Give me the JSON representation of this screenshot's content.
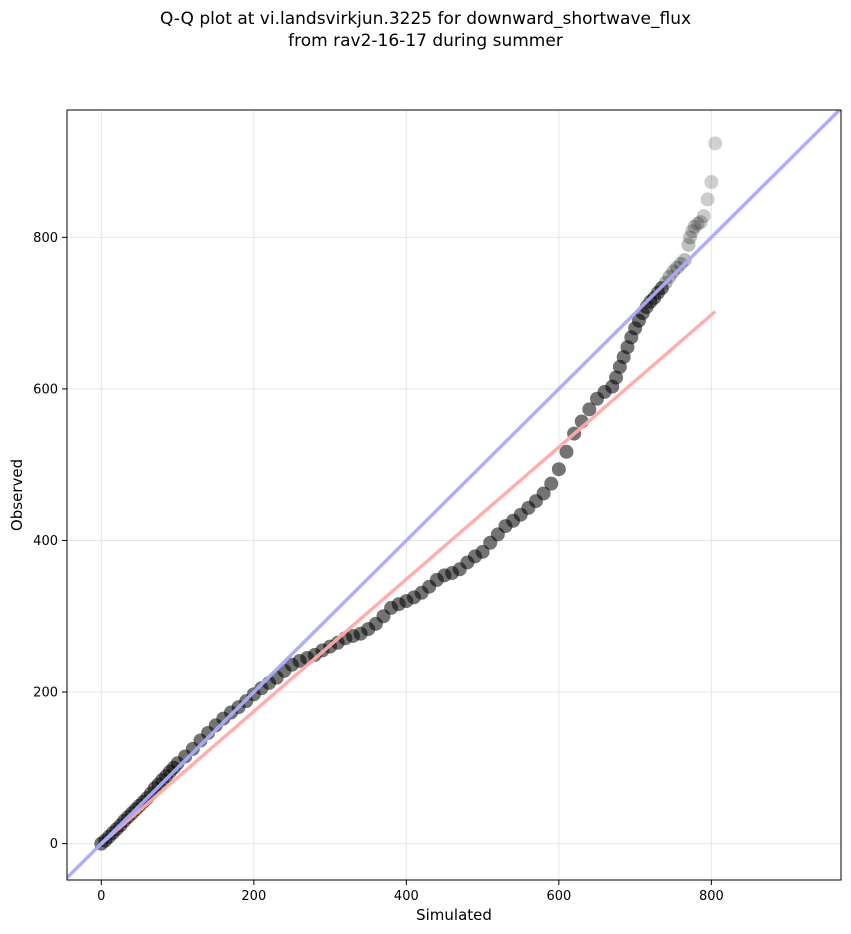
{
  "chart_data": {
    "type": "scatter",
    "title_line1": "Q-Q plot at vi.landsvirkjun.3225 for downward_shortwave_flux",
    "title_line2": "from rav2-16-17 during summer",
    "xlabel": "Simulated",
    "ylabel": "Observed",
    "xlim": [
      -45,
      970
    ],
    "ylim": [
      -48,
      968
    ],
    "xticks": [
      0,
      200,
      400,
      600,
      800
    ],
    "yticks": [
      0,
      200,
      400,
      600,
      800
    ],
    "grid": true,
    "colors": {
      "points": "#000000",
      "identity_line": "#aaaaff",
      "fit_line": "#ffaaaa"
    },
    "identity_line": {
      "x": [
        -45,
        970
      ],
      "y": [
        -45,
        970
      ]
    },
    "fit_line": {
      "x": [
        0,
        805
      ],
      "y": [
        0,
        702
      ]
    },
    "points": {
      "x": [
        0,
        5,
        10,
        15,
        20,
        25,
        30,
        35,
        40,
        45,
        50,
        55,
        60,
        65,
        70,
        75,
        80,
        85,
        90,
        95,
        100,
        110,
        120,
        130,
        140,
        150,
        160,
        170,
        180,
        190,
        200,
        210,
        220,
        230,
        240,
        250,
        260,
        270,
        280,
        290,
        300,
        310,
        320,
        330,
        340,
        350,
        360,
        370,
        380,
        390,
        400,
        410,
        420,
        430,
        440,
        450,
        460,
        470,
        480,
        490,
        500,
        510,
        520,
        530,
        540,
        550,
        560,
        570,
        580,
        590,
        600,
        610,
        620,
        630,
        640,
        650,
        660,
        670,
        675,
        680,
        685,
        690,
        695,
        700,
        705,
        710,
        715,
        720,
        725,
        730,
        735,
        740,
        745,
        750,
        755,
        760,
        765,
        770,
        772,
        775,
        778,
        782,
        786,
        790,
        795,
        800,
        805
      ],
      "y": [
        0,
        4,
        9,
        14,
        19,
        24,
        30,
        35,
        40,
        45,
        50,
        55,
        60,
        66,
        73,
        78,
        84,
        89,
        95,
        100,
        106,
        115,
        125,
        136,
        146,
        156,
        165,
        173,
        180,
        188,
        197,
        205,
        212,
        219,
        228,
        236,
        241,
        245,
        249,
        255,
        260,
        265,
        271,
        274,
        277,
        283,
        290,
        300,
        311,
        316,
        320,
        325,
        331,
        339,
        348,
        354,
        357,
        362,
        371,
        379,
        385,
        397,
        408,
        419,
        426,
        434,
        443,
        452,
        462,
        475,
        494,
        517,
        541,
        557,
        573,
        587,
        596,
        603,
        615,
        629,
        642,
        655,
        668,
        680,
        690,
        700,
        708,
        715,
        720,
        727,
        733,
        740,
        748,
        755,
        760,
        765,
        770,
        790,
        800,
        808,
        814,
        818,
        820,
        828,
        850,
        873,
        924
      ]
    }
  }
}
